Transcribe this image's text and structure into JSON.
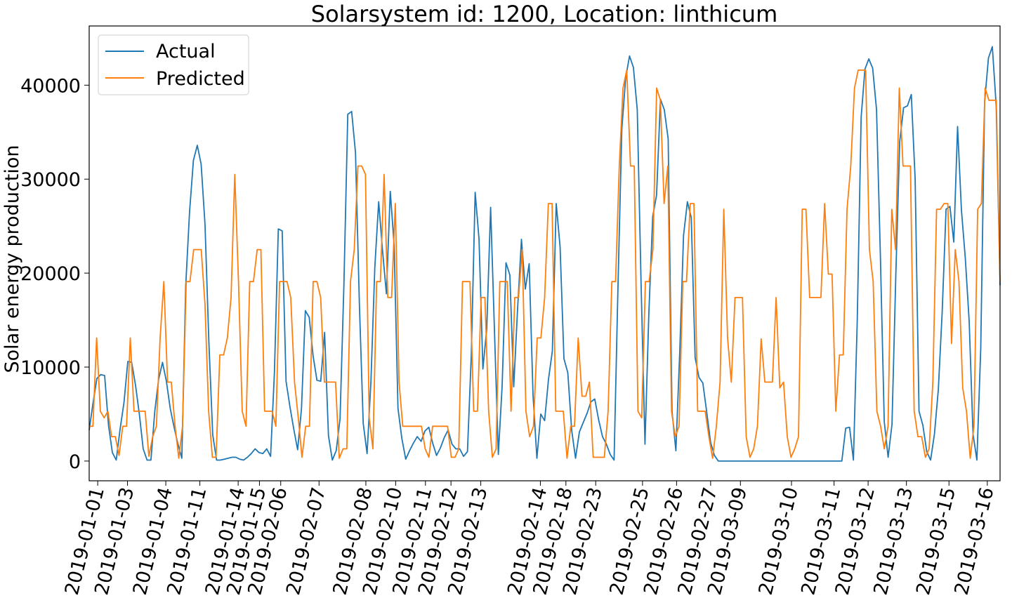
{
  "chart_data": {
    "type": "line",
    "title": "Solarsystem id: 1200, Location: linthicum",
    "xlabel": "",
    "ylabel": "Solar energy production",
    "ylim": [
      -2100,
      46300
    ],
    "yticks": [
      0,
      10000,
      20000,
      30000,
      40000
    ],
    "ytick_labels": [
      "0",
      "10000",
      "20000",
      "30000",
      "40000"
    ],
    "x_index_range": [
      0,
      214
    ],
    "xticks": [
      {
        "index": 2,
        "label": "2019-01-01"
      },
      {
        "index": 9,
        "label": "2019-01-03"
      },
      {
        "index": 18,
        "label": "2019-01-04"
      },
      {
        "index": 26,
        "label": "2019-01-11"
      },
      {
        "index": 35,
        "label": "2019-01-14"
      },
      {
        "index": 40,
        "label": "2019-01-15"
      },
      {
        "index": 45,
        "label": "2019-02-06"
      },
      {
        "index": 54,
        "label": "2019-02-07"
      },
      {
        "index": 65,
        "label": "2019-02-08"
      },
      {
        "index": 72,
        "label": "2019-02-10"
      },
      {
        "index": 79,
        "label": "2019-02-11"
      },
      {
        "index": 85,
        "label": "2019-02-12"
      },
      {
        "index": 92,
        "label": "2019-02-13"
      },
      {
        "index": 106,
        "label": "2019-02-14"
      },
      {
        "index": 112,
        "label": "2019-02-18"
      },
      {
        "index": 119,
        "label": "2019-02-23"
      },
      {
        "index": 130,
        "label": "2019-02-25"
      },
      {
        "index": 138,
        "label": "2019-02-26"
      },
      {
        "index": 146,
        "label": "2019-02-27"
      },
      {
        "index": 153,
        "label": "2019-03-09"
      },
      {
        "index": 165,
        "label": "2019-03-10"
      },
      {
        "index": 175,
        "label": "2019-03-11"
      },
      {
        "index": 183,
        "label": "2019-03-12"
      },
      {
        "index": 192,
        "label": "2019-03-13"
      },
      {
        "index": 202,
        "label": "2019-03-15"
      },
      {
        "index": 211,
        "label": "2019-03-16"
      }
    ],
    "legend_position": "upper-left",
    "grid": false,
    "series": [
      {
        "name": "Actual",
        "color": "#1f77b4",
        "values": [
          3300,
          6200,
          8800,
          9200,
          9100,
          3800,
          900,
          100,
          3400,
          6200,
          10600,
          10500,
          8100,
          5000,
          1300,
          100,
          100,
          5300,
          8700,
          10500,
          8500,
          5600,
          3600,
          1800,
          300,
          18600,
          26500,
          32000,
          33600,
          31600,
          25200,
          12700,
          2800,
          100,
          100,
          200,
          300,
          400,
          400,
          200,
          100,
          400,
          800,
          1300,
          900,
          800,
          1300,
          500,
          9500,
          24700,
          24500,
          8500,
          5800,
          3400,
          1200,
          5600,
          16000,
          15300,
          11200,
          8600,
          8500,
          13700,
          2700,
          100,
          1100,
          4500,
          18800,
          36900,
          37200,
          32800,
          16800,
          4000,
          800,
          8500,
          20600,
          27600,
          22400,
          17800,
          28700,
          23000,
          5600,
          2400,
          200,
          1100,
          1900,
          2600,
          2100,
          3200,
          3600,
          1900,
          600,
          1400,
          2500,
          3300,
          1800,
          1300,
          1300,
          500,
          1000,
          11300,
          28600,
          23600,
          9800,
          14100,
          27000,
          13800,
          700,
          8000,
          21100,
          19800,
          7900,
          16200,
          23600,
          18300,
          21000,
          7000,
          300,
          5000,
          4300,
          8700,
          11700,
          27400,
          22800,
          10900,
          9400,
          3300,
          300,
          3100,
          4100,
          5100,
          6300,
          6600,
          4400,
          2600,
          1800,
          700,
          100,
          18400,
          35300,
          40800,
          43100,
          41900,
          37400,
          18700,
          1800,
          15700,
          26000,
          28300,
          38500,
          37400,
          34300,
          5300,
          1100,
          11600,
          24000,
          27600,
          25900,
          11000,
          8900,
          8300,
          5200,
          2000,
          600,
          0,
          0,
          0,
          0,
          0,
          0,
          0,
          0,
          0,
          0,
          0,
          0,
          0,
          0,
          0,
          0,
          0,
          0,
          0,
          0,
          0,
          0,
          0,
          0,
          0,
          0,
          0,
          0,
          0,
          0,
          0,
          0,
          0,
          3500,
          3600,
          100,
          15100,
          36600,
          41700,
          42800,
          41800,
          37400,
          21800,
          4200,
          400,
          3900,
          19900,
          34000,
          37600,
          37800,
          39000,
          30000,
          5300,
          3800,
          1000,
          100,
          2900,
          7600,
          15900,
          26800,
          27100,
          23300,
          35600,
          26700,
          21600,
          14900,
          2900,
          100,
          12000,
          38200,
          42900,
          44100,
          37800,
          18700
        ]
      },
      {
        "name": "Predicted",
        "color": "#ff7f0e",
        "values": [
          3700,
          3700,
          13100,
          5300,
          4600,
          5300,
          2600,
          2600,
          600,
          3700,
          3700,
          13100,
          5300,
          5300,
          5300,
          5300,
          500,
          2600,
          3700,
          13100,
          19100,
          8400,
          8400,
          3700,
          300,
          3700,
          19100,
          19100,
          22500,
          22500,
          22500,
          16800,
          5300,
          400,
          400,
          11300,
          11300,
          13100,
          17400,
          30500,
          19100,
          5300,
          3700,
          19100,
          19100,
          22500,
          22500,
          5300,
          5300,
          5300,
          3700,
          19100,
          19100,
          19100,
          17400,
          8400,
          4600,
          400,
          3700,
          3700,
          19100,
          19100,
          17400,
          8400,
          8400,
          8400,
          8400,
          300,
          1300,
          1300,
          19100,
          22500,
          31400,
          31400,
          30500,
          4600,
          1300,
          19100,
          19100,
          30500,
          17400,
          17400,
          27400,
          8400,
          3700,
          3700,
          3700,
          3700,
          3700,
          3700,
          1300,
          400,
          3700,
          3700,
          3700,
          3700,
          3700,
          400,
          400,
          1300,
          19100,
          19100,
          19100,
          5300,
          5300,
          17400,
          17400,
          5300,
          400,
          1300,
          19100,
          19100,
          19100,
          5300,
          17400,
          17400,
          22500,
          5300,
          2600,
          3700,
          13100,
          13100,
          17400,
          27400,
          27400,
          5300,
          5300,
          5300,
          300,
          3700,
          3700,
          13100,
          6900,
          6900,
          8400,
          400,
          400,
          400,
          400,
          5300,
          19100,
          19100,
          31400,
          39700,
          41600,
          31400,
          31400,
          5300,
          4600,
          19100,
          19100,
          22500,
          39700,
          38400,
          27400,
          31400,
          5300,
          2600,
          3700,
          19100,
          19100,
          27400,
          27400,
          5300,
          5300,
          5300,
          2600,
          300,
          3700,
          8400,
          26800,
          13100,
          8400,
          17400,
          17400,
          17400,
          2600,
          400,
          1300,
          3700,
          13000,
          8400,
          8400,
          8400,
          17400,
          7800,
          8400,
          2600,
          400,
          1300,
          2600,
          26800,
          26800,
          17400,
          17400,
          17400,
          17400,
          27400,
          19900,
          19900,
          5300,
          11300,
          11300,
          26800,
          31400,
          39700,
          41600,
          41600,
          41600,
          22500,
          19100,
          5300,
          3700,
          1300,
          3700,
          26800,
          22500,
          39700,
          31400,
          31400,
          31400,
          5300,
          2600,
          2600,
          400,
          1300,
          8400,
          26800,
          26800,
          27400,
          27400,
          12500,
          22500,
          19100,
          7800,
          5300,
          300,
          3700,
          26800,
          27400,
          39700,
          38400,
          38400,
          38400,
          19100
        ]
      }
    ]
  }
}
